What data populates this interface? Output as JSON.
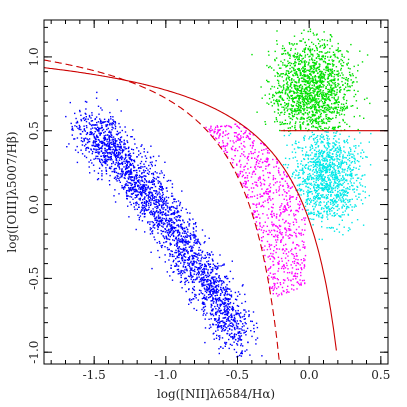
{
  "chart_data": {
    "type": "scatter",
    "xlabel": "log([NII]λ6584/Hα)",
    "ylabel": "log([OIII]λ5007/Hβ)",
    "xlim": [
      -1.85,
      0.55
    ],
    "ylim": [
      -1.08,
      1.25
    ],
    "x_ticks": [
      {
        "value": -1.5,
        "label": "-1.5"
      },
      {
        "value": -1.0,
        "label": "-1.0"
      },
      {
        "value": -0.5,
        "label": "-0.5"
      },
      {
        "value": 0.0,
        "label": "0.0"
      },
      {
        "value": 0.5,
        "label": "0.5"
      }
    ],
    "y_ticks": [
      {
        "value": -1.0,
        "label": "-1.0"
      },
      {
        "value": -0.5,
        "label": "-0.5"
      },
      {
        "value": 0.0,
        "label": "0.0"
      },
      {
        "value": 0.5,
        "label": "0.5"
      },
      {
        "value": 1.0,
        "label": "1.0"
      }
    ],
    "grid": false,
    "colors": {
      "blue": "#0000ff",
      "magenta": "#ff00ff",
      "green": "#00e000",
      "cyan": "#00e8e8",
      "curve": "#cc0000"
    },
    "series": [
      {
        "color": "#0000ff",
        "center_ridge": [
          [
            -1.55,
            0.52
          ],
          [
            -1.2,
            0.3
          ],
          [
            -0.9,
            0.0
          ],
          [
            -0.7,
            -0.3
          ],
          [
            -0.55,
            -0.6
          ],
          [
            -0.48,
            -0.9
          ]
        ],
        "approx_count": 2200
      },
      {
        "color": "#ff00ff",
        "region": "between dashed and solid curves",
        "x_range": [
          -0.75,
          -0.05
        ],
        "y_range": [
          -0.75,
          0.55
        ],
        "approx_count": 1200
      },
      {
        "color": "#00e000",
        "x_range": [
          -0.35,
          0.45
        ],
        "y_range": [
          0.5,
          1.2
        ],
        "approx_count": 1300
      },
      {
        "color": "#00e8e8",
        "x_range": [
          -0.05,
          0.45
        ],
        "y_range": [
          -0.25,
          0.5
        ],
        "approx_count": 900
      }
    ],
    "lines": [
      {
        "style": "solid",
        "formula": "y = 0.61/(x - 0.47) + 1.19",
        "x_range": [
          -1.85,
          0.19
        ]
      },
      {
        "style": "dashed",
        "formula": "y = 0.61/(x - 0.05) + 1.30",
        "x_range": [
          -1.85,
          -0.2
        ]
      },
      {
        "style": "solid",
        "formula": "y = 0.5",
        "x_range": [
          -0.2,
          0.55
        ]
      }
    ]
  }
}
